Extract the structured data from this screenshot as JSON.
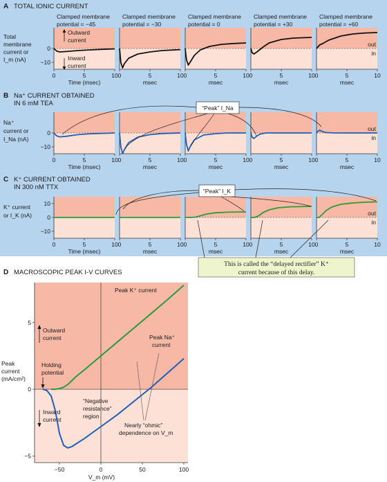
{
  "panels": {
    "A": {
      "letter": "A",
      "title": "TOTAL IONIC CURRENT",
      "ylabel_lines": [
        "Total",
        "membrane",
        "current or",
        "I_m (nA)"
      ],
      "headers": [
        [
          "Clamped membrane",
          "potential = −45"
        ],
        [
          "Clamped membrane",
          "potential = −30"
        ],
        [
          "Clamped membrane",
          "potential = 0"
        ],
        [
          "Clamped membrane",
          "potential = +30"
        ],
        [
          "Clamped membrane",
          "potential = +60"
        ]
      ],
      "outward_lines": [
        "Outward",
        "current"
      ],
      "inward_lines": [
        "Inward",
        "current"
      ],
      "yticks": [
        "0",
        "−10"
      ],
      "xlabel_first": "Time (msec)",
      "xlabel": "msec"
    },
    "B": {
      "letter": "B",
      "title_lines": [
        "Na⁺ CURRENT OBTAINED",
        "IN 6 mM TEA"
      ],
      "ylabel_lines": [
        "Na⁺",
        "current or",
        "I_Na (nA)"
      ],
      "peak_label": "“Peak” I_Na",
      "yticks": [
        "0",
        "−10"
      ],
      "xlabel_first": "Time (msec)",
      "xlabel": "msec"
    },
    "C": {
      "letter": "C",
      "title_lines": [
        "K⁺ CURRENT OBTAINED",
        "IN 300 nM TTX"
      ],
      "ylabel_lines": [
        "K⁺ current",
        "or I_K (nA)"
      ],
      "peak_label": "“Peak” I_K",
      "yticks": [
        "10",
        "0",
        "−10"
      ],
      "xlabel_first": "Time (msec)",
      "xlabel": "msec",
      "note_lines": [
        "This is called the “delayed rectifier” K⁺",
        "current because of this delay."
      ]
    },
    "common": {
      "xticks": [
        "0",
        "5",
        "10"
      ],
      "out_label": "out",
      "in_label": "in"
    },
    "D": {
      "letter": "D",
      "title": "MACROSCOPIC PEAK I-V CURVES",
      "ylabel_lines": [
        "Peak",
        "current",
        "(mA/cm²)"
      ],
      "xlabel": "V_m (mV)",
      "xticks": [
        "−50",
        "0",
        "50",
        "100"
      ],
      "yticks": [
        "5",
        "0",
        "−5"
      ],
      "label_peak_k": "Peak K⁺ current",
      "label_peak_na_lines": [
        "Peak Na⁺",
        "current"
      ],
      "label_outward_lines": [
        "Outward",
        "current"
      ],
      "label_holding_lines": [
        "Holding",
        "potential"
      ],
      "label_inward_lines": [
        "Inward",
        "current"
      ],
      "label_negres_lines": [
        "“Negative",
        "resistance”",
        "region"
      ],
      "label_ohmic_lines": [
        "Nearly “ohmic”",
        "dependence on V_m"
      ]
    }
  },
  "colors": {
    "panel_bg": "#b7d4ee",
    "plot_bg": "#f7b9a6",
    "plot_light": "#fde1d6",
    "black_trace": "#111111",
    "na_trace": "#1f5fb8",
    "k_trace": "#2a9a3a",
    "note_bg": "#eef5cc"
  },
  "chart_data": [
    {
      "type": "line",
      "panel": "A",
      "x_units": "msec",
      "xlim": [
        0,
        10
      ],
      "ylim": [
        -15,
        15
      ],
      "series": [
        {
          "potential_mV": -45,
          "color": "#111111",
          "x": [
            0,
            0.25,
            0.5,
            1,
            2,
            4,
            6,
            8,
            10
          ],
          "y": [
            0,
            -1,
            -2,
            -2.5,
            -2.2,
            -1.5,
            -1,
            -0.6,
            -0.3
          ]
        },
        {
          "potential_mV": -30,
          "color": "#111111",
          "x": [
            0,
            0.2,
            0.5,
            0.8,
            1.5,
            3,
            5,
            7,
            10
          ],
          "y": [
            0,
            -10,
            -14,
            -11,
            -7,
            -4,
            -2.5,
            -1.5,
            -0.8
          ]
        },
        {
          "potential_mV": 0,
          "color": "#111111",
          "x": [
            0,
            0.2,
            0.5,
            0.8,
            1.5,
            2.5,
            4,
            6,
            8,
            10
          ],
          "y": [
            0,
            -8,
            -12,
            -10,
            -5,
            -1,
            1.5,
            3,
            3.6,
            4
          ]
        },
        {
          "potential_mV": 30,
          "color": "#111111",
          "x": [
            0,
            0.2,
            0.5,
            1,
            2,
            3,
            5,
            7,
            10
          ],
          "y": [
            0,
            -3,
            -4,
            -2.5,
            1,
            4,
            6.5,
            7.5,
            8
          ]
        },
        {
          "potential_mV": 60,
          "color": "#111111",
          "x": [
            0,
            0.2,
            0.5,
            1,
            2,
            4,
            6,
            8,
            10
          ],
          "y": [
            0,
            1,
            2.5,
            3.5,
            6,
            9,
            10.5,
            11.2,
            11.5
          ]
        }
      ]
    },
    {
      "type": "line",
      "panel": "B",
      "x_units": "msec",
      "xlim": [
        0,
        10
      ],
      "ylim": [
        -15,
        15
      ],
      "series": [
        {
          "potential_mV": -45,
          "color": "#1f5fb8",
          "x": [
            0,
            0.25,
            0.5,
            1,
            2,
            4,
            6,
            8,
            10
          ],
          "y": [
            0,
            -1.2,
            -2.2,
            -2.8,
            -2.4,
            -1.2,
            -0.6,
            -0.3,
            0
          ]
        },
        {
          "potential_mV": -30,
          "color": "#1f5fb8",
          "x": [
            0,
            0.2,
            0.5,
            0.8,
            1.5,
            3,
            5,
            7,
            10
          ],
          "y": [
            0,
            -10,
            -15,
            -12,
            -7,
            -3,
            -1.2,
            -0.4,
            0
          ]
        },
        {
          "potential_mV": 0,
          "color": "#1f5fb8",
          "x": [
            0,
            0.2,
            0.5,
            0.8,
            1.5,
            3,
            5,
            7,
            10
          ],
          "y": [
            0,
            -8,
            -13,
            -10,
            -5,
            -1.5,
            -0.5,
            0,
            0
          ]
        },
        {
          "potential_mV": 30,
          "color": "#1f5fb8",
          "x": [
            0,
            0.2,
            0.5,
            0.9,
            1.5,
            2.5,
            4,
            10
          ],
          "y": [
            0,
            -3,
            -4,
            -2.5,
            -0.8,
            0,
            0,
            0
          ]
        },
        {
          "potential_mV": 60,
          "color": "#1f5fb8",
          "x": [
            0,
            0.2,
            0.5,
            0.9,
            1.5,
            3,
            10
          ],
          "y": [
            0,
            1.2,
            2,
            1.2,
            0.3,
            0,
            0
          ]
        }
      ]
    },
    {
      "type": "line",
      "panel": "C",
      "x_units": "msec",
      "xlim": [
        0,
        10
      ],
      "ylim": [
        -15,
        15
      ],
      "series": [
        {
          "potential_mV": -45,
          "color": "#2a9a3a",
          "x": [
            0,
            10
          ],
          "y": [
            0,
            0
          ]
        },
        {
          "potential_mV": -30,
          "color": "#2a9a3a",
          "x": [
            0,
            10
          ],
          "y": [
            0,
            0
          ]
        },
        {
          "potential_mV": 0,
          "color": "#2a9a3a",
          "x": [
            0,
            1,
            1.8,
            2.5,
            3.5,
            5,
            7,
            10
          ],
          "y": [
            0,
            0,
            0.3,
            1.2,
            2.5,
            3.4,
            3.8,
            4
          ]
        },
        {
          "potential_mV": 30,
          "color": "#2a9a3a",
          "x": [
            0,
            0.6,
            1.2,
            2,
            3,
            4.5,
            6.5,
            10
          ],
          "y": [
            0,
            0,
            1,
            3.5,
            5.5,
            7,
            7.7,
            8
          ]
        },
        {
          "potential_mV": 60,
          "color": "#2a9a3a",
          "x": [
            0,
            0.4,
            0.9,
            1.6,
            2.5,
            4,
            6,
            8,
            10
          ],
          "y": [
            0,
            0,
            2,
            5,
            7.5,
            9.5,
            10.5,
            11,
            11.3
          ]
        }
      ]
    },
    {
      "type": "line",
      "panel": "D",
      "x_units": "mV",
      "y_units": "mA/cm²",
      "xlim": [
        -80,
        105
      ],
      "ylim": [
        -5.5,
        8
      ],
      "series": [
        {
          "name": "Peak K⁺ current",
          "color": "#2a9a3a",
          "x": [
            -60,
            -55,
            -50,
            -45,
            -40,
            -35,
            -30,
            -20,
            0,
            20,
            40,
            60,
            80,
            100
          ],
          "y": [
            0,
            0,
            0.05,
            0.15,
            0.35,
            0.65,
            0.95,
            1.45,
            2.5,
            3.55,
            4.6,
            5.65,
            6.7,
            7.8
          ]
        },
        {
          "name": "Peak Na⁺ current",
          "color": "#1f5fb8",
          "x": [
            -70,
            -65,
            -60,
            -55,
            -50,
            -45,
            -40,
            -35,
            -30,
            -20,
            0,
            20,
            40,
            60,
            80,
            100
          ],
          "y": [
            0,
            -0.1,
            -0.5,
            -1.6,
            -3.3,
            -4.2,
            -4.4,
            -4.3,
            -4.1,
            -3.7,
            -2.8,
            -1.9,
            -0.9,
            0.1,
            1.2,
            2.3
          ]
        }
      ]
    }
  ]
}
